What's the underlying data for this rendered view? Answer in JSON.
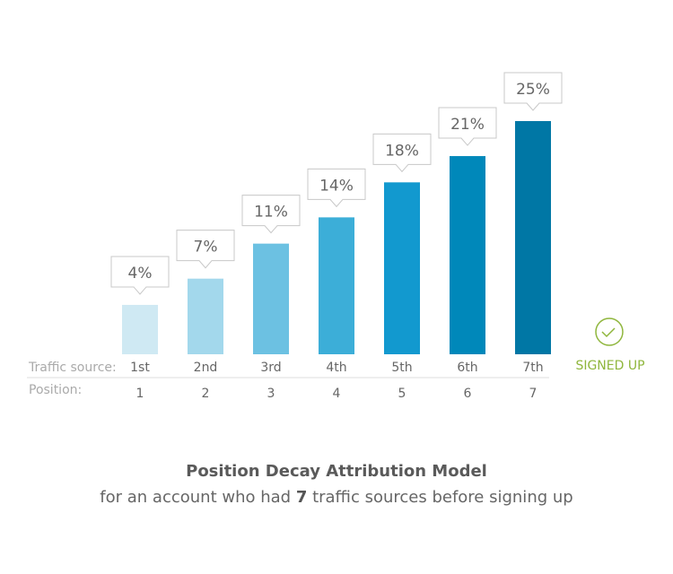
{
  "chart_data": {
    "type": "bar",
    "title": "Position Decay Attribution Model",
    "subtitle": {
      "pre": "for an account who had ",
      "bold": "7",
      "post": " traffic sources before signing up"
    },
    "row_labels": {
      "traffic_source": "Traffic source:",
      "position": "Position:"
    },
    "categories": [
      "1st",
      "2nd",
      "3rd",
      "4th",
      "5th",
      "6th",
      "7th"
    ],
    "positions": [
      "1",
      "2",
      "3",
      "4",
      "5",
      "6",
      "7"
    ],
    "values": [
      4,
      7,
      11,
      14,
      18,
      21,
      25
    ],
    "data_labels": [
      "4%",
      "7%",
      "11%",
      "14%",
      "18%",
      "21%",
      "25%"
    ],
    "colors": [
      "#cfe9f3",
      "#a3d8ec",
      "#6cc1e2",
      "#3caed8",
      "#1299cf",
      "#0088ba",
      "#0077a5"
    ],
    "grid": false,
    "end_marker": {
      "label": "SIGNED UP",
      "icon": "check-circle-icon",
      "color": "#8fb63c"
    }
  }
}
